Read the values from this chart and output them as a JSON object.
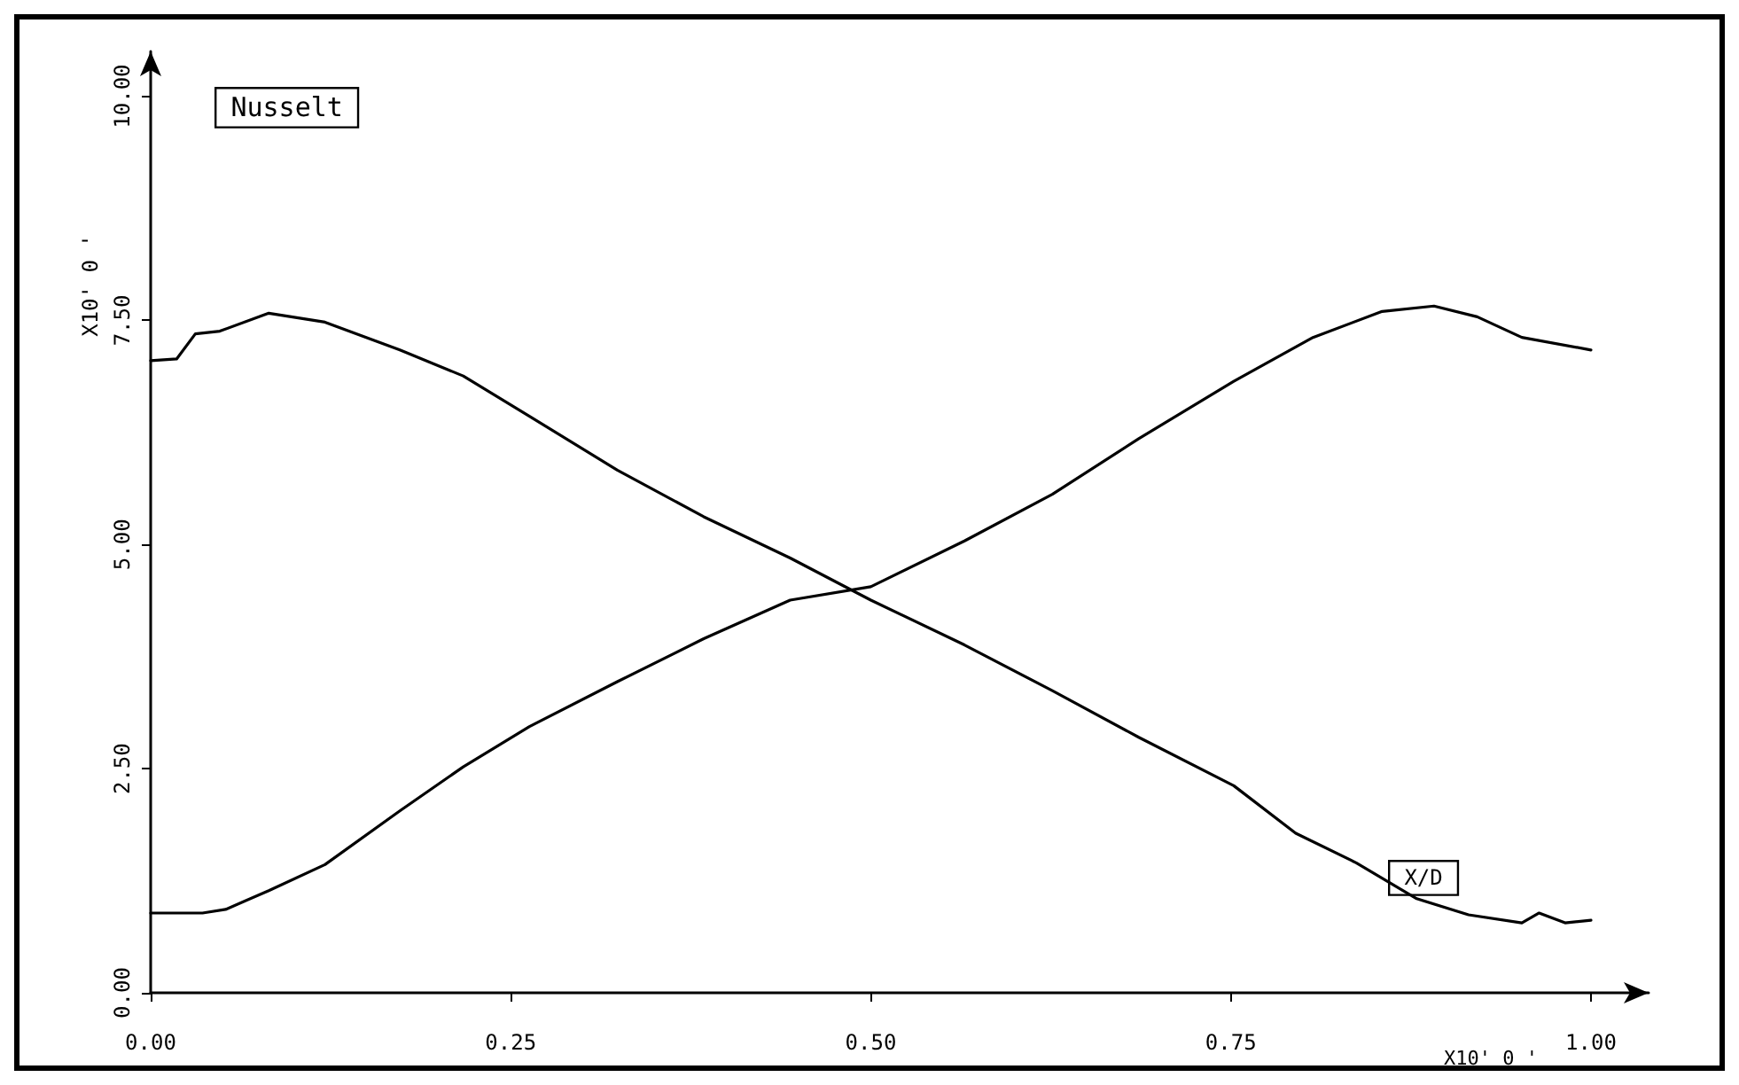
{
  "chart_data": {
    "type": "line",
    "ylabel": "Nusselt",
    "xlabel": "X/D",
    "annotations": [
      "X10' 0 '",
      "X10' 0 '"
    ],
    "xlim": [
      0,
      1.04
    ],
    "ylim": [
      0,
      10.5
    ],
    "xticks": [
      {
        "value": 0,
        "label": "0.00"
      },
      {
        "value": 0.25,
        "label": "0.25"
      },
      {
        "value": 0.5,
        "label": "0.50"
      },
      {
        "value": 0.75,
        "label": "0.75"
      },
      {
        "value": 1,
        "label": "1.00"
      }
    ],
    "yticks": [
      {
        "value": 0,
        "label": "0.00"
      },
      {
        "value": 2.5,
        "label": "2.50"
      },
      {
        "value": 5,
        "label": "5.00"
      },
      {
        "value": 7.5,
        "label": "7.50"
      },
      {
        "value": 10,
        "label": "10.00"
      }
    ],
    "grid": false,
    "marker": "none",
    "line_style": "solid",
    "series": [
      {
        "color": "#000000",
        "x": [
          0,
          0.018,
          0.031,
          0.048,
          0.082,
          0.121,
          0.173,
          0.217,
          0.263,
          0.324,
          0.384,
          0.444,
          0.5,
          0.565,
          0.626,
          0.686,
          0.752,
          0.795,
          0.837,
          0.879,
          0.915,
          0.952,
          0.964,
          0.982,
          1.0
        ],
        "values": [
          7.05,
          7.07,
          7.35,
          7.38,
          7.58,
          7.48,
          7.17,
          6.88,
          6.43,
          5.83,
          5.31,
          4.85,
          4.38,
          3.88,
          3.37,
          2.85,
          2.31,
          1.78,
          1.45,
          1.05,
          0.87,
          0.78,
          0.89,
          0.78,
          0.81
        ]
      },
      {
        "color": "#000000",
        "x": [
          0,
          0.036,
          0.052,
          0.082,
          0.121,
          0.173,
          0.217,
          0.263,
          0.324,
          0.384,
          0.444,
          0.5,
          0.565,
          0.626,
          0.686,
          0.752,
          0.807,
          0.855,
          0.891,
          0.921,
          0.952,
          1.0
        ],
        "values": [
          0.89,
          0.89,
          0.93,
          1.14,
          1.43,
          2.03,
          2.52,
          2.97,
          3.47,
          3.95,
          4.38,
          4.53,
          5.04,
          5.56,
          6.18,
          6.82,
          7.31,
          7.6,
          7.66,
          7.54,
          7.31,
          7.17
        ]
      }
    ]
  }
}
